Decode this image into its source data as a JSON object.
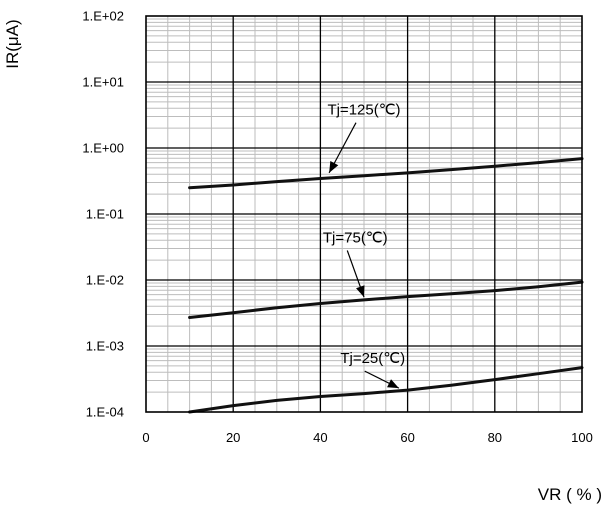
{
  "chart_data": {
    "type": "line",
    "title": "",
    "xlabel": "VR ( % )",
    "ylabel": "IR(μA)",
    "xlim": [
      0,
      100
    ],
    "ylim": [
      0.0001,
      100
    ],
    "yscale": "log",
    "grid": true,
    "x_ticks": [
      0,
      20,
      40,
      60,
      80,
      100
    ],
    "x_tick_labels": [
      "0",
      "20",
      "40",
      "60",
      "80",
      "100"
    ],
    "y_ticks": [
      100,
      10,
      1,
      0.1,
      0.01,
      0.001,
      0.0001
    ],
    "y_tick_labels": [
      "1.E+02",
      "1.E+01",
      "1.E+00",
      "1.E-01",
      "1.E-02",
      "1.E-03",
      "1.E-04"
    ],
    "series": [
      {
        "x": [
          10,
          20,
          30,
          40,
          50,
          60,
          70,
          80,
          90,
          100
        ],
        "y": [
          0.25,
          0.275,
          0.31,
          0.345,
          0.38,
          0.42,
          0.47,
          0.53,
          0.6,
          0.69
        ]
      },
      {
        "x": [
          10,
          20,
          30,
          40,
          50,
          60,
          70,
          80,
          90,
          100
        ],
        "y": [
          0.0027,
          0.0032,
          0.0038,
          0.0044,
          0.005,
          0.0056,
          0.0062,
          0.0069,
          0.0079,
          0.0093
        ]
      },
      {
        "x": [
          10,
          20,
          30,
          40,
          50,
          60,
          70,
          80,
          90,
          100
        ],
        "y": [
          0.0001,
          0.000125,
          0.00015,
          0.000172,
          0.00019,
          0.000215,
          0.000255,
          0.00031,
          0.00038,
          0.00047
        ]
      }
    ],
    "annotations": [
      {
        "text": "Tj=125(℃)",
        "x": 50,
        "y": 3.2,
        "arrow_to": [
          42,
          0.42
        ]
      },
      {
        "text": "Tj=75(℃)",
        "x": 48,
        "y": 0.037,
        "arrow_to": [
          50,
          0.0055
        ]
      },
      {
        "text": "Tj=25(℃)",
        "x": 52,
        "y": 0.00055,
        "arrow_to": [
          58,
          0.00023
        ]
      }
    ],
    "line_color": "#111111",
    "grid_color": "#bdbdbd",
    "major_grid_color": "#000000"
  }
}
